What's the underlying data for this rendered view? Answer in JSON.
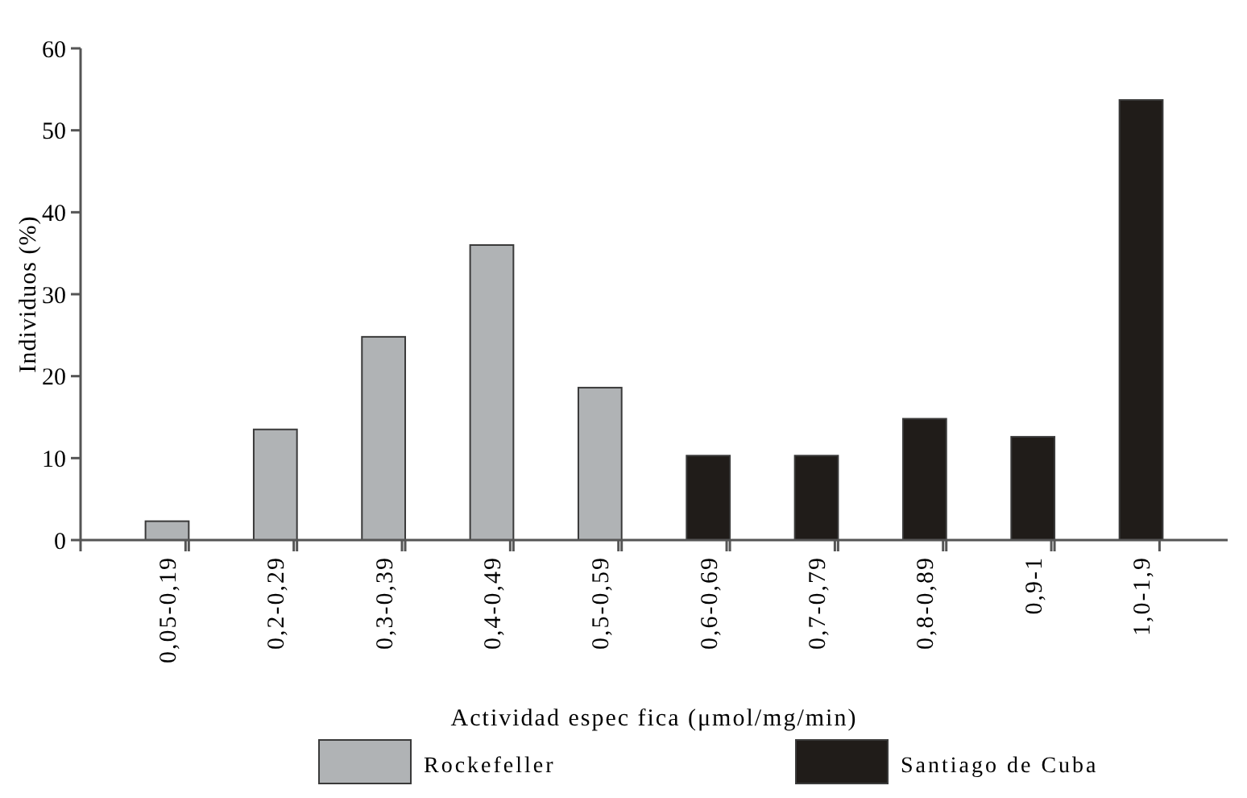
{
  "chart_data": {
    "type": "bar",
    "xlabel": "Actividad espec fica (μmol/mg/min)",
    "ylabel": "Individuos (%)",
    "categories": [
      "0,05-0,19",
      "0,2-0,29",
      "0,3-0,39",
      "0,4-0,49",
      "0,5-0,59",
      "0,6-0,69",
      "0,7-0,79",
      "0,8-0,89",
      "0,9-1",
      "1,0-1,9"
    ],
    "series": [
      {
        "name": "Rockefeller",
        "color": "#b0b3b5",
        "values": [
          2.3,
          13.5,
          24.8,
          36.0,
          18.6,
          null,
          null,
          null,
          null,
          null
        ]
      },
      {
        "name": "Santiago de Cuba",
        "color": "#201c19",
        "values": [
          null,
          null,
          null,
          null,
          null,
          10.3,
          10.3,
          14.8,
          12.6,
          53.7
        ]
      }
    ],
    "ylim": [
      0,
      60
    ],
    "yticks": [
      0,
      10,
      20,
      30,
      40,
      50,
      60
    ],
    "legend": "bottom"
  }
}
